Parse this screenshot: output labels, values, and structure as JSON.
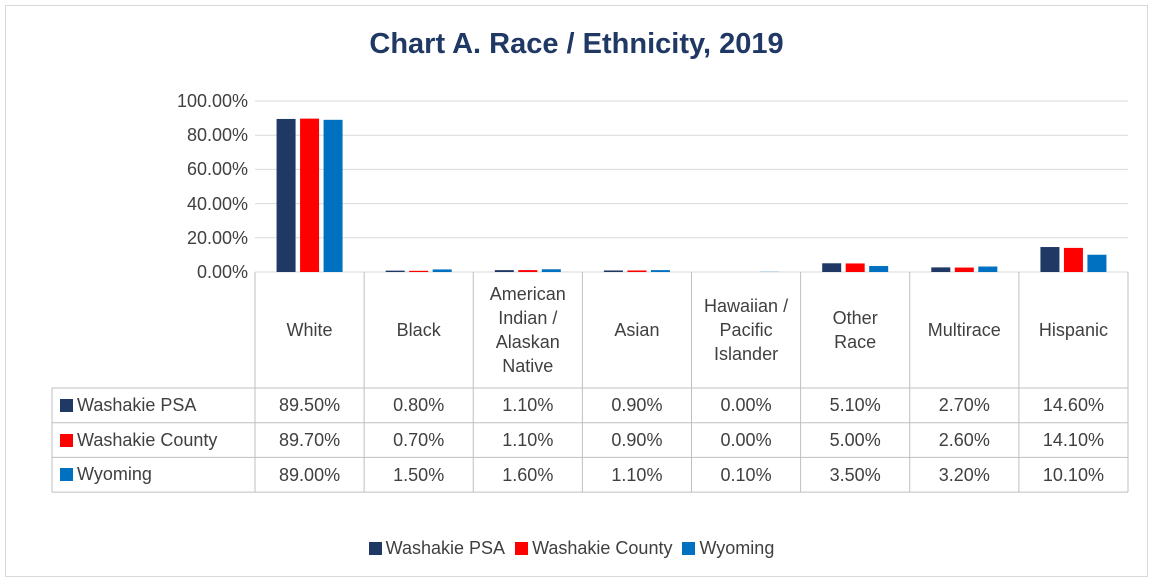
{
  "chart_data": {
    "type": "bar",
    "title": "Chart A. Race / Ethnicity, 2019",
    "categories": [
      "White",
      "Black",
      "American Indian / Alaskan Native",
      "Asian",
      "Hawaiian / Pacific Islander",
      "Other Race",
      "Multirace",
      "Hispanic"
    ],
    "series": [
      {
        "name": "Washakie PSA",
        "color": "#203864",
        "values": [
          89.5,
          0.8,
          1.1,
          0.9,
          0,
          5.1,
          2.7,
          14.6
        ],
        "value_labels": [
          "89.50%",
          "0.80%",
          "1.10%",
          "0.90%",
          "0.00%",
          "5.10%",
          "2.70%",
          "14.60%"
        ]
      },
      {
        "name": "Washakie County",
        "color": "#ff0000",
        "values": [
          89.7,
          0.7,
          1.1,
          0.9,
          0,
          5.0,
          2.6,
          14.1
        ],
        "value_labels": [
          "89.70%",
          "0.70%",
          "1.10%",
          "0.90%",
          "0.00%",
          "5.00%",
          "2.60%",
          "14.10%"
        ]
      },
      {
        "name": "Wyoming",
        "color": "#0070c0",
        "values": [
          89.0,
          1.5,
          1.6,
          1.1,
          0.1,
          3.5,
          3.2,
          10.1
        ],
        "value_labels": [
          "89.00%",
          "1.50%",
          "1.60%",
          "1.10%",
          "0.10%",
          "3.50%",
          "3.20%",
          "10.10%"
        ]
      }
    ],
    "ylim": [
      0,
      100
    ],
    "yticks": [
      {
        "value": 0,
        "label": "0.00%"
      },
      {
        "value": 20,
        "label": "20.00%"
      },
      {
        "value": 40,
        "label": "40.00%"
      },
      {
        "value": 60,
        "label": "60.00%"
      },
      {
        "value": 80,
        "label": "80.00%"
      },
      {
        "value": 100,
        "label": "100.00%"
      }
    ],
    "grid": true,
    "legend": "bottom"
  }
}
